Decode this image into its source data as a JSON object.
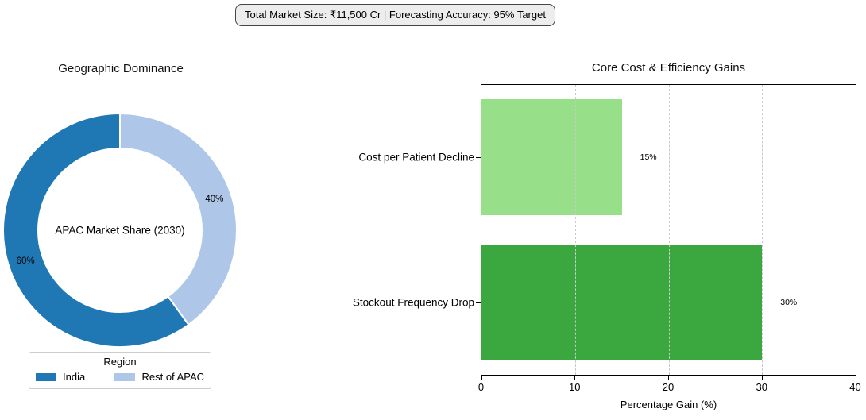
{
  "banner": {
    "text": "Total Market Size: ₹11,500 Cr | Forecasting Accuracy: 95% Target"
  },
  "chart_data": [
    {
      "type": "pie",
      "title": "Geographic Dominance",
      "center_label": "APAC Market Share (2030)",
      "legend_title": "Region",
      "legend_position": "bottom",
      "categories": [
        "India",
        "Rest of APAC"
      ],
      "values": [
        60,
        40
      ],
      "labels": [
        "60%",
        "40%"
      ],
      "colors": [
        "#1f77b4",
        "#aec7e8"
      ],
      "donut": true,
      "start_angle": 90,
      "counterclockwise": true
    },
    {
      "type": "bar",
      "orientation": "horizontal",
      "title": "Core Cost & Efficiency Gains",
      "categories": [
        "Cost per Patient Decline",
        "Stockout Frequency Drop"
      ],
      "values": [
        15,
        30
      ],
      "value_labels": [
        "15%",
        "30%"
      ],
      "colors": [
        "#98df8a",
        "#3aa83e"
      ],
      "xlabel": "Percentage Gain (%)",
      "xlim": [
        0,
        40
      ],
      "xticks": [
        0,
        10,
        20,
        30,
        40
      ],
      "grid": "dashed-vertical"
    }
  ]
}
